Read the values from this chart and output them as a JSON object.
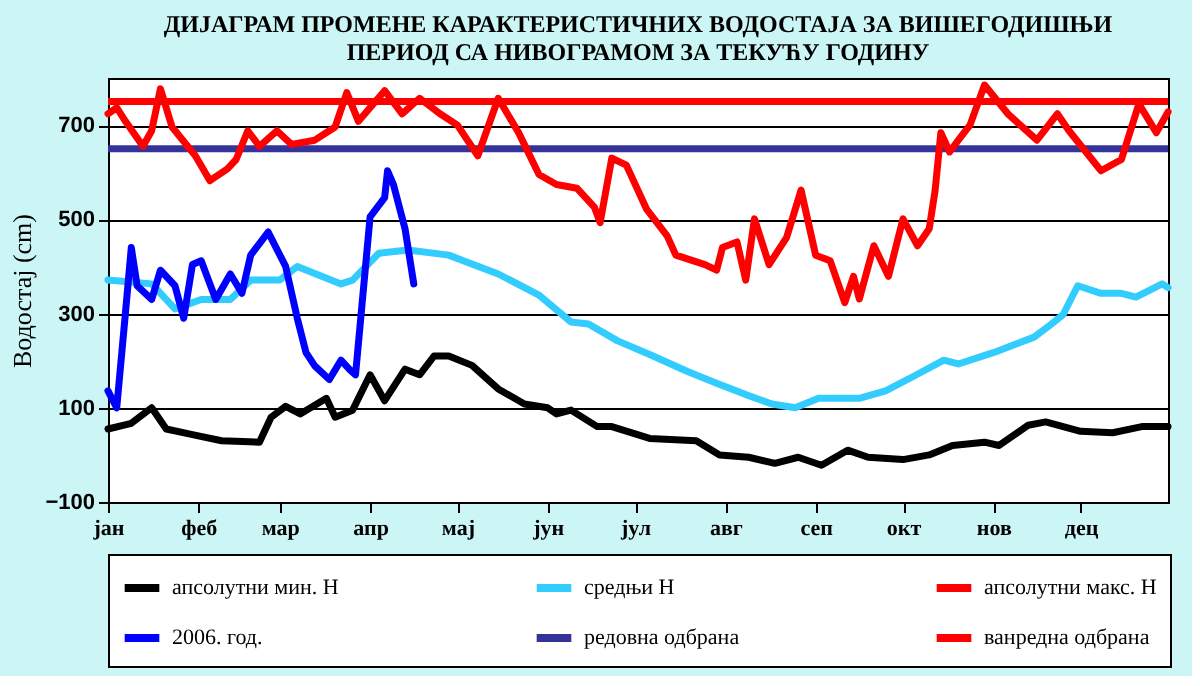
{
  "chart_data": {
    "type": "line",
    "title": [
      "ДИЈАГРАМ ПРОМЕНЕ КАРАКТЕРИСТИЧНИХ ВОДОСТАЈА ЗА ВИШЕГОДИШЊИ",
      "ПЕРИОД СА НИВОГРАМОМ ЗА ТЕКУЋУ ГОДИНУ"
    ],
    "ylabel": "Водостај (cm)",
    "categories": [
      "јан",
      null,
      null,
      null,
      null,
      null,
      null,
      null,
      null,
      null,
      null,
      null,
      null,
      null,
      null,
      null,
      null,
      null,
      null,
      null,
      null,
      null,
      null,
      null,
      null,
      null,
      null,
      null,
      null,
      null,
      null,
      "феб",
      null,
      null,
      null,
      null,
      null,
      null,
      null,
      null,
      null,
      null,
      null,
      null,
      null,
      null,
      null,
      null,
      null,
      null,
      null,
      null,
      null,
      null,
      null,
      null,
      null,
      null,
      null,
      "мар",
      null,
      null,
      null,
      null,
      null,
      null,
      null,
      null,
      null,
      null,
      null,
      null,
      null,
      null,
      null,
      null,
      null,
      null,
      null,
      null,
      null,
      null,
      null,
      null,
      null,
      null,
      null,
      null,
      null,
      null,
      "апр",
      null,
      null,
      null,
      null,
      null,
      null,
      null,
      null,
      null,
      null,
      null,
      null,
      null,
      null,
      null,
      null,
      null,
      null,
      null,
      null,
      null,
      null,
      null,
      null,
      null,
      null,
      null,
      null,
      null,
      "мај",
      null,
      null,
      null,
      null,
      null,
      null,
      null,
      null,
      null,
      null,
      null,
      null,
      null,
      null,
      null,
      null,
      null,
      null,
      null,
      null,
      null,
      null,
      null,
      null,
      null,
      null,
      null,
      null,
      null,
      null,
      "јун",
      null,
      null,
      null,
      null,
      null,
      null,
      null,
      null,
      null,
      null,
      null,
      null,
      null,
      null,
      null,
      null,
      null,
      null,
      null,
      null,
      null,
      null,
      null,
      null,
      null,
      null,
      null,
      null,
      null,
      "јул",
      null,
      null,
      null,
      null,
      null,
      null,
      null,
      null,
      null,
      null,
      null,
      null,
      null,
      null,
      null,
      null,
      null,
      null,
      null,
      null,
      null,
      null,
      null,
      null,
      null,
      null,
      null,
      null,
      null,
      null,
      "авг",
      null,
      null,
      null,
      null,
      null,
      null,
      null,
      null,
      null,
      null,
      null,
      null,
      null,
      null,
      null,
      null,
      null,
      null,
      null,
      null,
      null,
      null,
      null,
      null,
      null,
      null,
      null,
      null,
      null,
      null,
      "сеп",
      null,
      null,
      null,
      null,
      null,
      null,
      null,
      null,
      null,
      null,
      null,
      null,
      null,
      null,
      null,
      null,
      null,
      null,
      null,
      null,
      null,
      null,
      null,
      null,
      null,
      null,
      null,
      null,
      null,
      "окт",
      null,
      null,
      null,
      null,
      null,
      null,
      null,
      null,
      null,
      null,
      null,
      null,
      null,
      null,
      null,
      null,
      null,
      null,
      null,
      null,
      null,
      null,
      null,
      null,
      null,
      null,
      null,
      null,
      null,
      null,
      "нов",
      null,
      null,
      null,
      null,
      null,
      null,
      null,
      null,
      null,
      null,
      null,
      null,
      null,
      null,
      null,
      null,
      null,
      null,
      null,
      null,
      null,
      null,
      null,
      null,
      null,
      null,
      null,
      null,
      null,
      "дец",
      null,
      null,
      null,
      null,
      null,
      null,
      null,
      null,
      null,
      null,
      null,
      null,
      null,
      null,
      null,
      null,
      null,
      null,
      null,
      null,
      null,
      null,
      null,
      null,
      null,
      null,
      null,
      null,
      null,
      null
    ],
    "ylim": [
      -100,
      800
    ],
    "yticks": [
      -100,
      100,
      300,
      500,
      700
    ],
    "grid": "y",
    "legend": "bottom",
    "series": [
      {
        "name": "апсолутни мин. H",
        "color": "#000000",
        "values": [
          55,
          null,
          null,
          null,
          null,
          null,
          null,
          null,
          67,
          null,
          null,
          null,
          null,
          null,
          null,
          100,
          null,
          null,
          null,
          null,
          55,
          null,
          null,
          null,
          null,
          null,
          null,
          null,
          null,
          43,
          null,
          null,
          null,
          null,
          null,
          null,
          null,
          null,
          null,
          30,
          null,
          null,
          null,
          null,
          null,
          null,
          null,
          null,
          null,
          null,
          null,
          null,
          27,
          null,
          null,
          null,
          80,
          null,
          null,
          null,
          null,
          103,
          null,
          null,
          null,
          null,
          87,
          null,
          null,
          null,
          null,
          null,
          null,
          null,
          null,
          120,
          null,
          null,
          80,
          null,
          null,
          null,
          null,
          null,
          95,
          null,
          null,
          null,
          null,
          null,
          170,
          null,
          null,
          null,
          null,
          115,
          null,
          null,
          null,
          null,
          null,
          null,
          182,
          null,
          null,
          null,
          null,
          170,
          null,
          null,
          null,
          null,
          210,
          null,
          null,
          null,
          null,
          210,
          null,
          null,
          null,
          null,
          null,
          null,
          null,
          190,
          null,
          null,
          null,
          null,
          null,
          null,
          null,
          null,
          140,
          null,
          null,
          null,
          null,
          null,
          null,
          null,
          null,
          108,
          null,
          null,
          null,
          null,
          null,
          null,
          null,
          100,
          null,
          null,
          87,
          null,
          null,
          null,
          null,
          95,
          null,
          null,
          null,
          null,
          null,
          null,
          null,
          null,
          60,
          null,
          null,
          null,
          null,
          60,
          null,
          null,
          null,
          null,
          null,
          null,
          null,
          null,
          null,
          null,
          null,
          null,
          35,
          null,
          null,
          null,
          null,
          null,
          null,
          null,
          null,
          null,
          null,
          null,
          null,
          null,
          null,
          null,
          30,
          null,
          null,
          null,
          null,
          null,
          null,
          null,
          0,
          null,
          null,
          null,
          null,
          null,
          null,
          null,
          null,
          null,
          -5,
          null,
          null,
          null,
          null,
          null,
          null,
          null,
          null,
          -18,
          null,
          null,
          null,
          null,
          null,
          null,
          null,
          -5,
          null,
          null,
          null,
          null,
          null,
          null,
          null,
          -22,
          null,
          null,
          null,
          null,
          null,
          null,
          null,
          null,
          10,
          null,
          null,
          null,
          null,
          null,
          null,
          -5,
          null,
          null,
          null,
          null,
          null,
          null,
          null,
          null,
          null,
          null,
          null,
          -10,
          null,
          null,
          null,
          null,
          null,
          null,
          null,
          null,
          0,
          null,
          null,
          null,
          null,
          null,
          null,
          null,
          20,
          null,
          null,
          null,
          null,
          null,
          null,
          null,
          null,
          null,
          null,
          27,
          null,
          null,
          null,
          null,
          20,
          null,
          null,
          null,
          null,
          null,
          null,
          null,
          null,
          null,
          63,
          null,
          null,
          null,
          null,
          null,
          70,
          null,
          null,
          null,
          null,
          null,
          60,
          null,
          null,
          null,
          null,
          null,
          50,
          null,
          null,
          null,
          null,
          null,
          null,
          null,
          null,
          null,
          null,
          47,
          null,
          null,
          null,
          null,
          null,
          null,
          null,
          null,
          null,
          60,
          null,
          null,
          null,
          null,
          null,
          null,
          null,
          null,
          60
        ]
      },
      {
        "name": "средњи H",
        "color": "#33ccff",
        "values": [
          371,
          null,
          null,
          null,
          null,
          null,
          null,
          null,
          null,
          null,
          null,
          null,
          null,
          null,
          null,
          363,
          null,
          null,
          null,
          null,
          null,
          null,
          null,
          310,
          null,
          null,
          null,
          null,
          null,
          null,
          null,
          null,
          330,
          null,
          null,
          null,
          null,
          null,
          null,
          null,
          null,
          null,
          330,
          null,
          null,
          null,
          null,
          null,
          null,
          371,
          null,
          null,
          null,
          null,
          null,
          null,
          null,
          null,
          null,
          371,
          null,
          null,
          null,
          null,
          null,
          400,
          null,
          null,
          null,
          null,
          null,
          null,
          null,
          null,
          null,
          null,
          null,
          null,
          null,
          null,
          363,
          null,
          null,
          null,
          371,
          null,
          null,
          null,
          null,
          null,
          null,
          null,
          null,
          428,
          null,
          null,
          null,
          null,
          null,
          null,
          null,
          null,
          null,
          435,
          null,
          null,
          null,
          null,
          null,
          null,
          null,
          null,
          null,
          null,
          null,
          null,
          null,
          424,
          null,
          null,
          null,
          null,
          null,
          null,
          null,
          null,
          null,
          null,
          null,
          null,
          null,
          null,
          null,
          null,
          384,
          null,
          null,
          null,
          null,
          null,
          null,
          null,
          null,
          null,
          null,
          null,
          null,
          null,
          339,
          null,
          null,
          null,
          null,
          null,
          null,
          null,
          null,
          null,
          null,
          282,
          null,
          null,
          null,
          null,
          null,
          278,
          null,
          null,
          null,
          null,
          null,
          null,
          null,
          null,
          null,
          242,
          null,
          null,
          null,
          null,
          null,
          null,
          null,
          null,
          null,
          null,
          213,
          null,
          null,
          null,
          null,
          null,
          null,
          null,
          null,
          null,
          null,
          null,
          null,
          177,
          null,
          null,
          null,
          null,
          null,
          null,
          null,
          null,
          null,
          152,
          null,
          null,
          null,
          null,
          null,
          null,
          null,
          null,
          null,
          128,
          null,
          null,
          null,
          null,
          null,
          null,
          null,
          null,
          108,
          null,
          null,
          null,
          null,
          null,
          null,
          null,
          100,
          null,
          null,
          null,
          null,
          null,
          null,
          null,
          120,
          null,
          null,
          null,
          null,
          null,
          null,
          null,
          null,
          null,
          null,
          null,
          null,
          null,
          120,
          null,
          null,
          null,
          null,
          null,
          null,
          null,
          null,
          136,
          null,
          null,
          null,
          null,
          null,
          null,
          null,
          null,
          null,
          168,
          null,
          null,
          null,
          null,
          null,
          null,
          null,
          null,
          null,
          201,
          null,
          null,
          null,
          null,
          193,
          null,
          null,
          null,
          null,
          null,
          null,
          null,
          null,
          null,
          null,
          null,
          217,
          null,
          null,
          null,
          null,
          null,
          null,
          null,
          null,
          null,
          null,
          null,
          null,
          null,
          250,
          null,
          null,
          null,
          null,
          null,
          278,
          null,
          null,
          null,
          298,
          null,
          null,
          null,
          null,
          359,
          null,
          null,
          null,
          null,
          null,
          null,
          null,
          343,
          null,
          null,
          null,
          null,
          null,
          null,
          343,
          null,
          null,
          null,
          null,
          335,
          null,
          null,
          null,
          null,
          null,
          null,
          null,
          null,
          363,
          null,
          355
        ]
      },
      {
        "name": "апсолутни макс. H",
        "color": "#ff0000",
        "values": [
          724,
          null,
          null,
          737,
          null,
          null,
          708,
          null,
          null,
          null,
          null,
          null,
          655,
          null,
          null,
          688,
          null,
          null,
          777,
          null,
          null,
          null,
          696,
          null,
          null,
          null,
          null,
          null,
          null,
          null,
          635,
          null,
          null,
          null,
          null,
          582,
          null,
          null,
          null,
          null,
          null,
          607,
          null,
          null,
          627,
          null,
          null,
          null,
          688,
          null,
          null,
          null,
          655,
          null,
          null,
          null,
          null,
          null,
          688,
          null,
          null,
          null,
          null,
          659,
          null,
          null,
          null,
          null,
          null,
          null,
          null,
          668,
          null,
          null,
          null,
          null,
          null,
          null,
          696,
          null,
          null,
          null,
          769,
          null,
          null,
          null,
          708,
          null,
          null,
          null,
          null,
          null,
          null,
          null,
          null,
          773,
          null,
          null,
          null,
          null,
          null,
          724,
          null,
          null,
          null,
          null,
          null,
          757,
          null,
          null,
          null,
          null,
          null,
          null,
          724,
          null,
          null,
          null,
          null,
          null,
          700,
          null,
          null,
          null,
          null,
          null,
          null,
          635,
          null,
          null,
          null,
          null,
          null,
          null,
          757,
          null,
          null,
          null,
          null,
          null,
          null,
          684,
          null,
          null,
          null,
          null,
          null,
          null,
          595,
          null,
          null,
          null,
          null,
          null,
          574,
          null,
          null,
          null,
          null,
          null,
          null,
          566,
          null,
          null,
          null,
          null,
          null,
          526,
          null,
          493,
          null,
          null,
          null,
          630,
          null,
          null,
          null,
          null,
          615,
          null,
          null,
          null,
          null,
          null,
          null,
          521,
          null,
          null,
          null,
          null,
          null,
          null,
          465,
          null,
          null,
          424,
          null,
          null,
          null,
          null,
          null,
          null,
          null,
          null,
          null,
          404,
          null,
          null,
          null,
          392,
          null,
          440,
          null,
          null,
          null,
          null,
          452,
          null,
          null,
          371,
          null,
          null,
          501,
          null,
          null,
          null,
          null,
          404,
          null,
          null,
          null,
          null,
          null,
          461,
          null,
          null,
          null,
          null,
          562,
          null,
          null,
          null,
          null,
          424,
          null,
          null,
          null,
          null,
          412,
          null,
          null,
          null,
          null,
          323,
          null,
          null,
          379,
          null,
          331,
          null,
          null,
          null,
          null,
          444,
          null,
          null,
          null,
          null,
          379,
          null,
          null,
          null,
          null,
          501,
          null,
          null,
          null,
          null,
          444,
          null,
          null,
          null,
          480,
          null,
          560,
          null,
          684,
          null,
          null,
          643,
          null,
          null,
          668,
          null,
          null,
          null,
          700,
          null,
          null,
          null,
          null,
          785,
          null,
          null,
          null,
          null,
          null,
          null,
          null,
          724,
          null,
          null,
          null,
          null,
          null,
          null,
          null,
          null,
          null,
          668,
          null,
          null,
          null,
          null,
          null,
          null,
          724,
          null,
          null,
          null,
          688,
          null,
          null,
          null,
          null,
          null,
          null,
          null,
          null,
          null,
          null,
          603,
          null,
          null,
          null,
          null,
          null,
          null,
          627,
          null,
          null,
          null,
          null,
          null,
          745,
          null,
          null,
          null,
          null,
          null,
          684,
          null,
          null,
          null,
          728
        ]
      },
      {
        "name": "2006. год.",
        "color": "#0000ff",
        "values": [
          136,
          null,
          null,
          100,
          null,
          null,
          302,
          null,
          440,
          null,
          359,
          null,
          null,
          null,
          null,
          330,
          null,
          null,
          392,
          null,
          null,
          null,
          null,
          359,
          null,
          null,
          290,
          null,
          null,
          404,
          null,
          null,
          412,
          null,
          null,
          null,
          null,
          330,
          null,
          null,
          null,
          null,
          384,
          null,
          null,
          null,
          343,
          null,
          null,
          424,
          null,
          null,
          null,
          null,
          null,
          473,
          null,
          null,
          null,
          null,
          null,
          400,
          null,
          null,
          null,
          290,
          null,
          null,
          217,
          null,
          null,
          189,
          null,
          null,
          null,
          null,
          160,
          null,
          null,
          null,
          201,
          null,
          null,
          181,
          null,
          170,
          null,
          null,
          371,
          null,
          505,
          null,
          null,
          null,
          null,
          546,
          603,
          null,
          574,
          null,
          null,
          null,
          480,
          null,
          null,
          363,
          null,
          null,
          null,
          null,
          null,
          null,
          null,
          null,
          null,
          null,
          null,
          null,
          null,
          null,
          null,
          null,
          null,
          null,
          null,
          null,
          null,
          null,
          null,
          null,
          null,
          null,
          null,
          null,
          null,
          null,
          null,
          null,
          null,
          null,
          null,
          null,
          null,
          null,
          null,
          null,
          null,
          null,
          null,
          null,
          null,
          null,
          null,
          null,
          null,
          null,
          null,
          null,
          null,
          null,
          null,
          null,
          null,
          null,
          null,
          null,
          null,
          null,
          null,
          null,
          null,
          null,
          null,
          null,
          null,
          null,
          null,
          null,
          null,
          null,
          null,
          null,
          null,
          null,
          null,
          null,
          null,
          null,
          null,
          null,
          null,
          null,
          null,
          null,
          null,
          null,
          null,
          null,
          null,
          null,
          null,
          null,
          null,
          null,
          null,
          null,
          null,
          null,
          null,
          null,
          null,
          null,
          null,
          null,
          null,
          null,
          null,
          null,
          null,
          null,
          null,
          null,
          null,
          null,
          null,
          null,
          null,
          null,
          null,
          null,
          null,
          null,
          null,
          null,
          null,
          null,
          null,
          null,
          null,
          null,
          null,
          null,
          null,
          null,
          null,
          null,
          null,
          null,
          null,
          null,
          null,
          null,
          null,
          null,
          null,
          null,
          null,
          null,
          null,
          null,
          null,
          null,
          null,
          null,
          null,
          null,
          null,
          null,
          null,
          null,
          null,
          null,
          null,
          null,
          null,
          null,
          null,
          null,
          null,
          null,
          null,
          null,
          null,
          null,
          null,
          null,
          null,
          null,
          null,
          null,
          null,
          null,
          null,
          null,
          null,
          null,
          null,
          null,
          null,
          null,
          null,
          null,
          null,
          null,
          null,
          null,
          null,
          null,
          null,
          null,
          null,
          null,
          null,
          null,
          null,
          null,
          null,
          null,
          null,
          null,
          null,
          null,
          null,
          null,
          null,
          null,
          null,
          null,
          null,
          null,
          null,
          null,
          null,
          null,
          null,
          null,
          null,
          null,
          null,
          null,
          null,
          null,
          null,
          null,
          null,
          null,
          null,
          null,
          null,
          null,
          null,
          null,
          null,
          null,
          null,
          null,
          null,
          null,
          null,
          null,
          null,
          null,
          null,
          null,
          null
        ]
      }
    ],
    "ref_lines": [
      {
        "axis": "y",
        "value": 650,
        "label": "редовна одбрана",
        "color": "#333399"
      },
      {
        "axis": "y",
        "value": 750,
        "label": "ванредна одбрана",
        "color": "#ff0000"
      }
    ]
  }
}
